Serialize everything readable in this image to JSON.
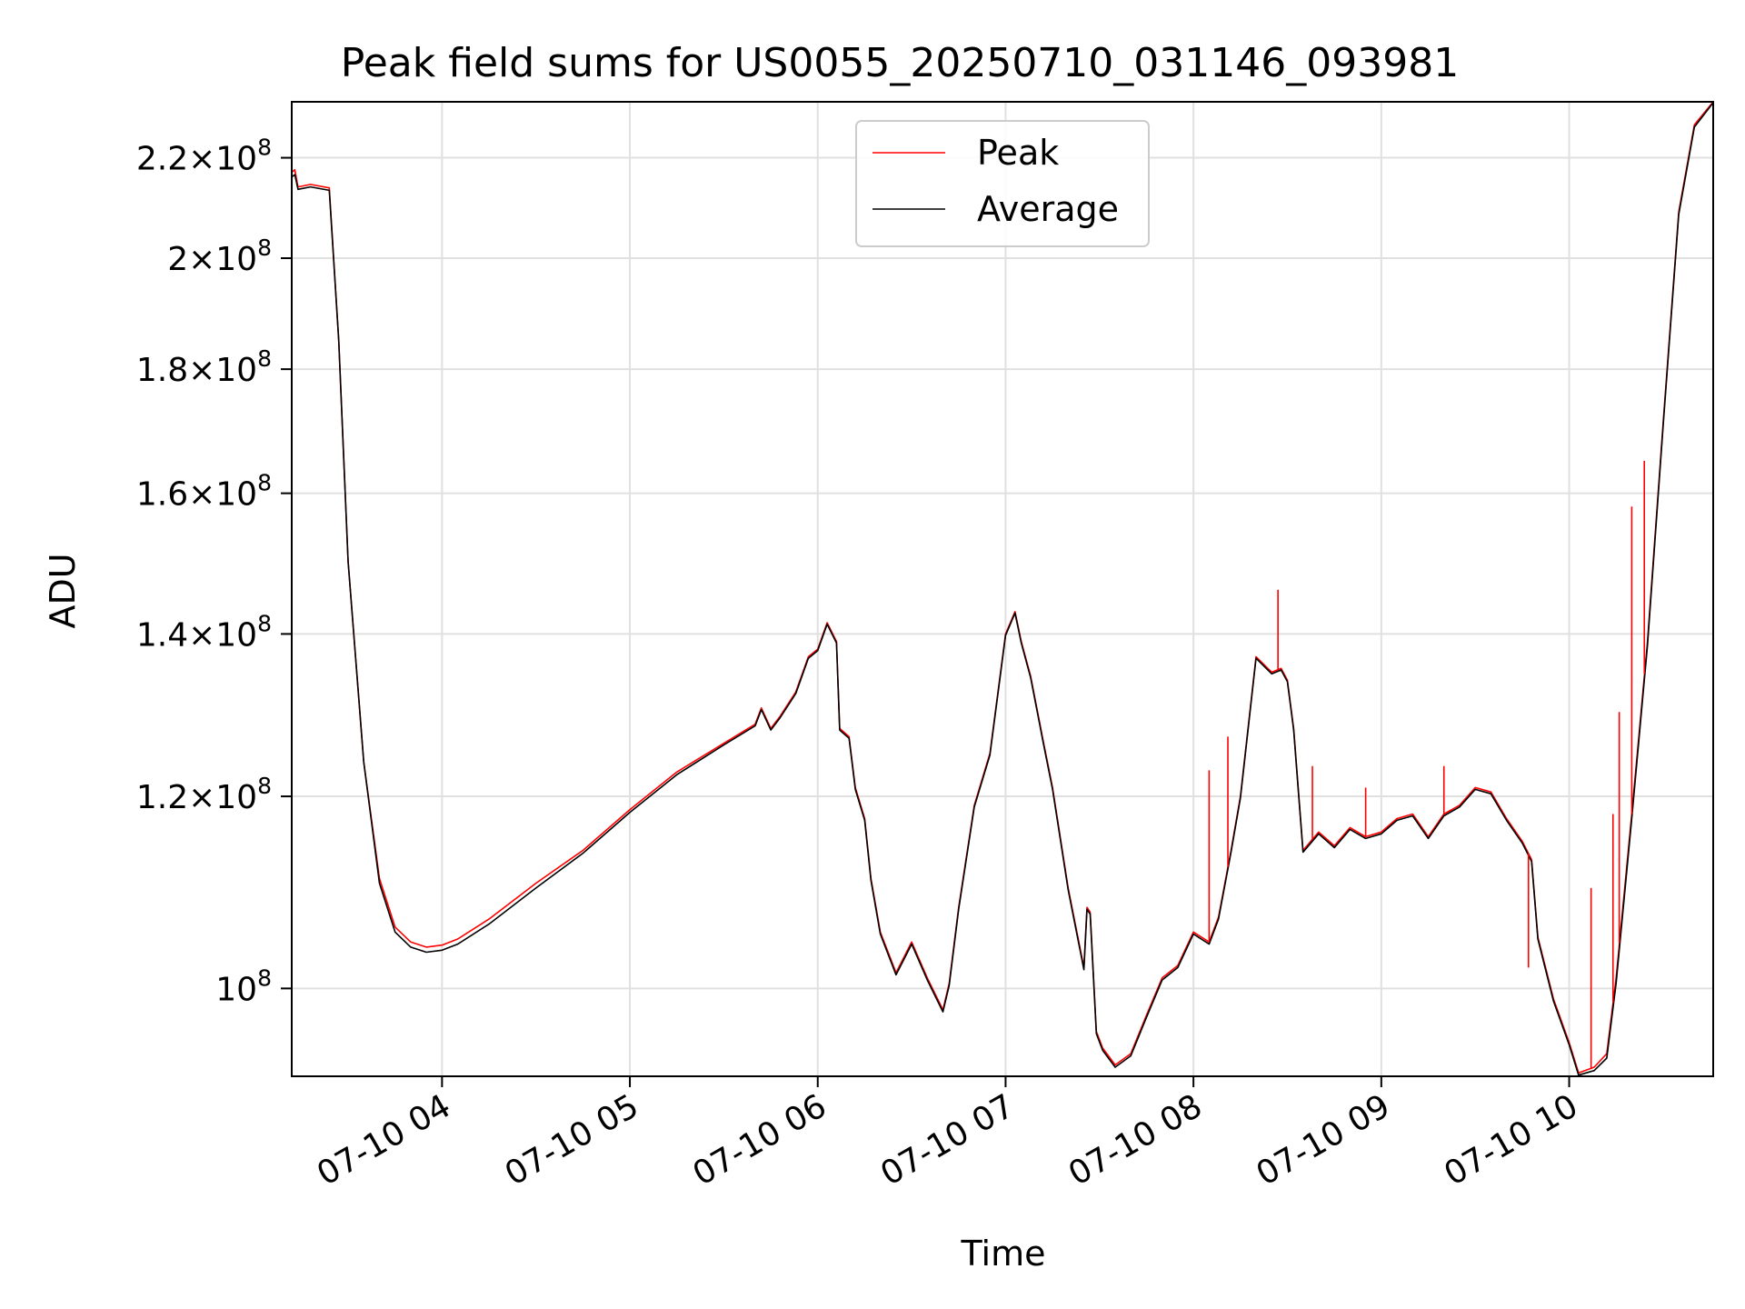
{
  "chart_data": {
    "type": "line",
    "title": "Peak field sums for US0055_20250710_031146_093981",
    "xlabel": "Time",
    "ylabel": "ADU",
    "yscale": "log",
    "xlim": [
      "2025-07-10 03:12",
      "2025-07-10 10:46"
    ],
    "ylim": [
      92000000.0,
      232000000.0
    ],
    "grid": true,
    "legend_position": "upper center",
    "x_ticks": [
      "2025-07-10 04:00",
      "2025-07-10 05:00",
      "2025-07-10 06:00",
      "2025-07-10 07:00",
      "2025-07-10 08:00",
      "2025-07-10 09:00",
      "2025-07-10 10:00"
    ],
    "x_tick_labels": [
      "07-10 04",
      "07-10 05",
      "07-10 06",
      "07-10 07",
      "07-10 08",
      "07-10 09",
      "07-10 10"
    ],
    "y_ticks": [
      {
        "value": 100000000,
        "mantissa": "",
        "exponent": "8"
      },
      {
        "value": 120000000,
        "mantissa": "1.2",
        "exponent": "8"
      },
      {
        "value": 140000000,
        "mantissa": "1.4",
        "exponent": "8"
      },
      {
        "value": 160000000,
        "mantissa": "1.6",
        "exponent": "8"
      },
      {
        "value": 180000000,
        "mantissa": "1.8",
        "exponent": "8"
      },
      {
        "value": 200000000,
        "mantissa": "2",
        "exponent": "8"
      },
      {
        "value": 220000000,
        "mantissa": "2.2",
        "exponent": "8"
      }
    ],
    "x": [
      "2025-07-10 03:12",
      "2025-07-10 03:13",
      "2025-07-10 03:14",
      "2025-07-10 03:18",
      "2025-07-10 03:24",
      "2025-07-10 03:27",
      "2025-07-10 03:30",
      "2025-07-10 03:35",
      "2025-07-10 03:40",
      "2025-07-10 03:45",
      "2025-07-10 03:50",
      "2025-07-10 03:55",
      "2025-07-10 04:00",
      "2025-07-10 04:05",
      "2025-07-10 04:15",
      "2025-07-10 04:30",
      "2025-07-10 04:45",
      "2025-07-10 05:00",
      "2025-07-10 05:15",
      "2025-07-10 05:30",
      "2025-07-10 05:40",
      "2025-07-10 05:42",
      "2025-07-10 05:45",
      "2025-07-10 05:48",
      "2025-07-10 05:53",
      "2025-07-10 05:57",
      "2025-07-10 06:00",
      "2025-07-10 06:03",
      "2025-07-10 06:06",
      "2025-07-10 06:07",
      "2025-07-10 06:10",
      "2025-07-10 06:12",
      "2025-07-10 06:15",
      "2025-07-10 06:17",
      "2025-07-10 06:20",
      "2025-07-10 06:25",
      "2025-07-10 06:30",
      "2025-07-10 06:35",
      "2025-07-10 06:40",
      "2025-07-10 06:42",
      "2025-07-10 06:45",
      "2025-07-10 06:50",
      "2025-07-10 06:55",
      "2025-07-10 07:00",
      "2025-07-10 07:03",
      "2025-07-10 07:05",
      "2025-07-10 07:08",
      "2025-07-10 07:12",
      "2025-07-10 07:15",
      "2025-07-10 07:20",
      "2025-07-10 07:25",
      "2025-07-10 07:26",
      "2025-07-10 07:27",
      "2025-07-10 07:29",
      "2025-07-10 07:31",
      "2025-07-10 07:35",
      "2025-07-10 07:40",
      "2025-07-10 07:45",
      "2025-07-10 07:50",
      "2025-07-10 07:55",
      "2025-07-10 08:00",
      "2025-07-10 08:05",
      "2025-07-10 08:08",
      "2025-07-10 08:12",
      "2025-07-10 08:15",
      "2025-07-10 08:20",
      "2025-07-10 08:25",
      "2025-07-10 08:28",
      "2025-07-10 08:30",
      "2025-07-10 08:32",
      "2025-07-10 08:35",
      "2025-07-10 08:40",
      "2025-07-10 08:45",
      "2025-07-10 08:50",
      "2025-07-10 08:55",
      "2025-07-10 09:00",
      "2025-07-10 09:05",
      "2025-07-10 09:10",
      "2025-07-10 09:15",
      "2025-07-10 09:20",
      "2025-07-10 09:25",
      "2025-07-10 09:30",
      "2025-07-10 09:35",
      "2025-07-10 09:40",
      "2025-07-10 09:45",
      "2025-07-10 09:48",
      "2025-07-10 09:50",
      "2025-07-10 09:55",
      "2025-07-10 10:00",
      "2025-07-10 10:03",
      "2025-07-10 10:08",
      "2025-07-10 10:12",
      "2025-07-10 10:15",
      "2025-07-10 10:20",
      "2025-07-10 10:25",
      "2025-07-10 10:30",
      "2025-07-10 10:35",
      "2025-07-10 10:40",
      "2025-07-10 10:46"
    ],
    "series": [
      {
        "name": "Peak",
        "color": "#ff0000",
        "values": [
          217000000,
          217500000,
          214000000,
          214500000,
          213800000,
          185000000,
          150000000,
          124000000,
          111000000,
          106000000,
          104500000,
          104000000,
          104200000,
          104800000,
          106800000,
          110500000,
          114000000,
          118500000,
          122800000,
          126200000,
          128500000,
          130500000,
          128000000,
          129500000,
          132500000,
          137000000,
          138000000,
          141500000,
          139000000,
          128000000,
          127000000,
          121000000,
          117500000,
          111000000,
          105500000,
          101500000,
          104500000,
          101000000,
          98000000,
          100500000,
          108000000,
          119000000,
          125000000,
          140000000,
          143000000,
          139000000,
          134500000,
          126500000,
          121000000,
          110000000,
          102000000,
          108000000,
          107500000,
          96000000,
          94500000,
          93000000,
          94000000,
          97500000,
          101000000,
          102200000,
          105500000,
          104500000,
          107000000,
          114000000,
          120000000,
          137000000,
          135000000,
          135500000,
          134000000,
          128000000,
          114000000,
          116000000,
          114500000,
          116500000,
          115500000,
          116000000,
          117500000,
          118000000,
          115500000,
          118000000,
          119000000,
          121000000,
          120500000,
          117500000,
          115000000,
          113000000,
          105000000,
          99000000,
          95000000,
          92300000,
          92800000,
          94000000,
          101000000,
          118000000,
          139000000,
          171000000,
          209000000,
          227000000,
          232000000
        ]
      },
      {
        "name": "Average",
        "color": "#000000",
        "values": [
          216000000,
          216500000,
          213500000,
          214000000,
          213300000,
          185000000,
          150000000,
          124000000,
          110500000,
          105500000,
          104000000,
          103500000,
          103700000,
          104300000,
          106300000,
          110000000,
          113700000,
          118200000,
          122500000,
          126000000,
          128300000,
          130300000,
          127800000,
          129300000,
          132300000,
          136800000,
          137800000,
          141300000,
          138800000,
          127800000,
          126800000,
          120800000,
          117300000,
          110800000,
          105300000,
          101300000,
          104300000,
          100800000,
          97800000,
          100300000,
          107800000,
          118800000,
          124800000,
          139800000,
          142800000,
          138800000,
          134300000,
          126300000,
          120800000,
          109800000,
          101800000,
          107800000,
          107300000,
          95800000,
          94300000,
          92800000,
          93800000,
          97300000,
          100800000,
          102000000,
          105300000,
          104300000,
          106800000,
          113800000,
          119800000,
          136800000,
          134800000,
          135300000,
          133800000,
          127800000,
          113800000,
          115800000,
          114300000,
          116300000,
          115300000,
          115800000,
          117300000,
          117800000,
          115300000,
          117800000,
          118800000,
          120800000,
          120300000,
          117300000,
          114800000,
          112800000,
          104800000,
          98800000,
          94800000,
          92100000,
          92500000,
          93600000,
          100500000,
          117500000,
          138500000,
          170500000,
          208500000,
          226500000,
          231800000
        ]
      }
    ],
    "spikes": {
      "series": "Peak",
      "x": [
        "2025-07-10 08:05",
        "2025-07-10 08:11",
        "2025-07-10 08:27",
        "2025-07-10 08:38",
        "2025-07-10 08:55",
        "2025-07-10 09:20",
        "2025-07-10 09:47",
        "2025-07-10 10:07",
        "2025-07-10 10:14",
        "2025-07-10 10:16",
        "2025-07-10 10:20",
        "2025-07-10 10:24"
      ],
      "values": [
        123000000,
        127000000,
        146000000,
        123500000,
        121000000,
        123500000,
        102000000,
        110000000,
        118000000,
        130000000,
        158000000,
        165000000
      ]
    }
  }
}
